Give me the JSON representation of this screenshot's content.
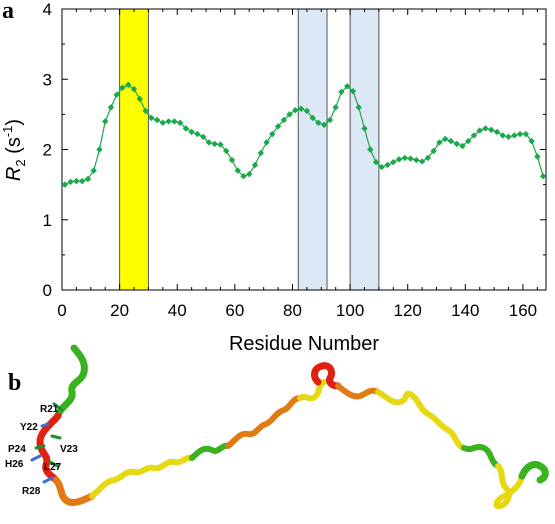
{
  "panels": {
    "a_letter": "a",
    "b_letter": "b"
  },
  "chart_data": {
    "type": "line",
    "title": "",
    "xlabel": "Residue Number",
    "ylabel_main": "R",
    "ylabel_sub": "2",
    "ylabel_unit_open": " (s",
    "ylabel_unit_sup": "-1",
    "ylabel_unit_close": ")",
    "xlim": [
      0,
      168
    ],
    "ylim": [
      0,
      4
    ],
    "xticks": [
      0,
      20,
      40,
      60,
      80,
      100,
      120,
      140,
      160
    ],
    "yticks": [
      0,
      1,
      2,
      3,
      4
    ],
    "grid": false,
    "marker": "diamond",
    "series_color": "#1aa84a",
    "series": [
      {
        "x": [
          1,
          3,
          5,
          7,
          9,
          11,
          13,
          15,
          17,
          19,
          21,
          23,
          25,
          27,
          29,
          31,
          33,
          35,
          37,
          39,
          41,
          43,
          45,
          47,
          49,
          51,
          53,
          55,
          57,
          59,
          61,
          63,
          65,
          67,
          69,
          71,
          73,
          75,
          77,
          79,
          81,
          83,
          85,
          87,
          89,
          91,
          93,
          95,
          97,
          99,
          101,
          103,
          105,
          107,
          109,
          111,
          113,
          115,
          117,
          119,
          121,
          123,
          125,
          127,
          129,
          131,
          133,
          135,
          137,
          139,
          141,
          143,
          145,
          147,
          149,
          151,
          153,
          155,
          157,
          159,
          161,
          163,
          165,
          167
        ],
        "values": [
          1.5,
          1.54,
          1.55,
          1.55,
          1.58,
          1.7,
          2.0,
          2.4,
          2.6,
          2.78,
          2.88,
          2.92,
          2.86,
          2.72,
          2.55,
          2.45,
          2.42,
          2.38,
          2.4,
          2.4,
          2.38,
          2.3,
          2.25,
          2.22,
          2.18,
          2.1,
          2.08,
          2.07,
          1.98,
          1.85,
          1.7,
          1.62,
          1.65,
          1.78,
          1.95,
          2.1,
          2.22,
          2.33,
          2.42,
          2.5,
          2.56,
          2.58,
          2.55,
          2.45,
          2.38,
          2.35,
          2.42,
          2.6,
          2.82,
          2.9,
          2.83,
          2.6,
          2.3,
          2.0,
          1.82,
          1.75,
          1.78,
          1.82,
          1.86,
          1.88,
          1.87,
          1.85,
          1.83,
          1.88,
          1.98,
          2.1,
          2.15,
          2.12,
          2.08,
          2.05,
          2.12,
          2.2,
          2.27,
          2.3,
          2.28,
          2.25,
          2.2,
          2.18,
          2.2,
          2.22,
          2.22,
          2.12,
          1.9,
          1.62
        ]
      }
    ],
    "regions": [
      {
        "x0": 20,
        "x1": 30,
        "color": "#ffff00",
        "edge": "#555555"
      },
      {
        "x0": 82,
        "x1": 92,
        "color": "#dce8f5",
        "edge": "#555555"
      },
      {
        "x0": 100,
        "x1": 110,
        "color": "#dce8f5",
        "edge": "#555555"
      }
    ]
  },
  "structure": {
    "residue_labels": [
      "R21",
      "Y22",
      "V23",
      "P24",
      "H26",
      "L27",
      "R28"
    ],
    "colors": {
      "green": "#38b21f",
      "yellow": "#e6d812",
      "orange": "#e07a12",
      "red": "#e02010",
      "dark_orange": "#c85a10"
    }
  }
}
